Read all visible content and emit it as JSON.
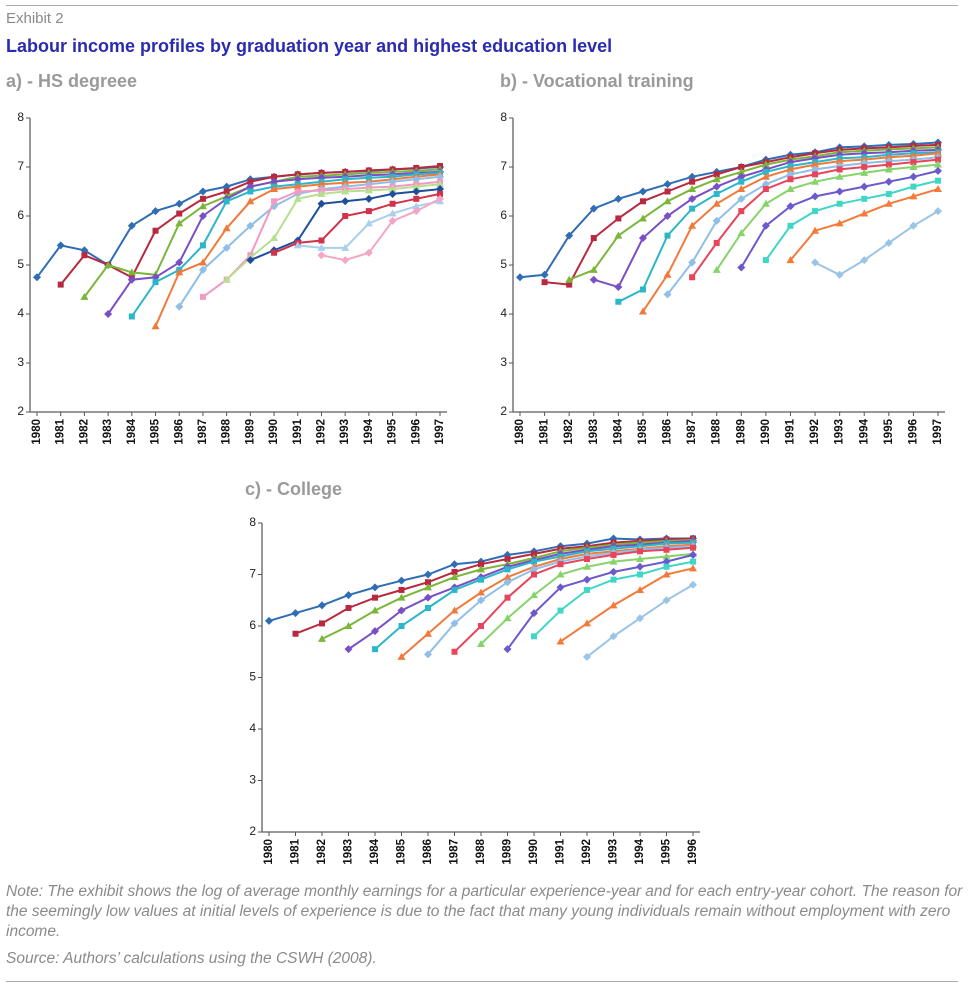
{
  "exhibit": "Exhibit 2",
  "title": "Labour income profiles by graduation year and highest education level",
  "note": "Note: The exhibit shows the log of average monthly earnings for a particular experience-year and for each entry-year cohort. The reason for the seemingly low values at initial levels of experience is due to the fact that many young individuals remain without employment with zero income.",
  "source": "Source: Authors’ calculations using the CSWH (2008).",
  "chart_data": [
    {
      "type": "line",
      "title": "a) - HS degreee",
      "categories": [
        "1980",
        "1981",
        "1982",
        "1983",
        "1984",
        "1985",
        "1986",
        "1987",
        "1988",
        "1989",
        "1990",
        "1991",
        "1992",
        "1993",
        "1994",
        "1995",
        "1996",
        "1997"
      ],
      "ylim": [
        2,
        8
      ],
      "yticks": [
        2,
        3,
        4,
        5,
        6,
        7,
        8
      ],
      "series": [
        {
          "color": "#2f6db5",
          "values": [
            4.75,
            5.4,
            5.3,
            5.0,
            5.8,
            6.1,
            6.25,
            6.5,
            6.6,
            6.75,
            6.8,
            6.85,
            6.88,
            6.9,
            6.92,
            6.95,
            6.97,
            7.0
          ]
        },
        {
          "color": "#b8283f",
          "values": [
            null,
            4.6,
            5.2,
            5.0,
            4.75,
            5.7,
            6.05,
            6.35,
            6.5,
            6.7,
            6.8,
            6.85,
            6.88,
            6.9,
            6.93,
            6.95,
            6.98,
            7.02
          ]
        },
        {
          "color": "#7bb63a",
          "values": [
            null,
            null,
            4.35,
            5.0,
            4.85,
            4.8,
            5.85,
            6.2,
            6.4,
            6.6,
            6.7,
            6.8,
            6.82,
            6.85,
            6.88,
            6.9,
            6.92,
            6.95
          ]
        },
        {
          "color": "#7a4fc4",
          "values": [
            null,
            null,
            null,
            4.0,
            4.7,
            4.75,
            5.05,
            6.0,
            6.35,
            6.6,
            6.7,
            6.75,
            6.78,
            6.8,
            6.83,
            6.85,
            6.88,
            6.9
          ]
        },
        {
          "color": "#2bb6c9",
          "values": [
            null,
            null,
            null,
            null,
            3.95,
            4.65,
            4.9,
            5.4,
            6.3,
            6.5,
            6.6,
            6.65,
            6.7,
            6.75,
            6.78,
            6.8,
            6.85,
            6.88
          ]
        },
        {
          "color": "#f07a3c",
          "values": [
            null,
            null,
            null,
            null,
            null,
            3.75,
            4.85,
            5.05,
            5.75,
            6.3,
            6.55,
            6.6,
            6.65,
            6.68,
            6.7,
            6.75,
            6.8,
            6.85
          ]
        },
        {
          "color": "#8fbfe8",
          "values": [
            null,
            null,
            null,
            null,
            null,
            null,
            4.15,
            4.9,
            5.35,
            5.8,
            6.2,
            6.45,
            6.55,
            6.6,
            6.65,
            6.7,
            6.75,
            6.8
          ]
        },
        {
          "color": "#f29ac0",
          "values": [
            null,
            null,
            null,
            null,
            null,
            null,
            null,
            4.35,
            4.7,
            5.2,
            6.3,
            6.5,
            6.52,
            6.55,
            6.58,
            6.6,
            6.65,
            6.7
          ]
        },
        {
          "color": "#b6e08f",
          "values": [
            null,
            null,
            null,
            null,
            null,
            null,
            null,
            null,
            4.7,
            5.15,
            5.55,
            6.35,
            6.45,
            6.5,
            6.52,
            6.55,
            6.6,
            6.65
          ]
        },
        {
          "color": "#1f4f9a",
          "values": [
            null,
            null,
            null,
            null,
            null,
            null,
            null,
            null,
            null,
            5.1,
            5.3,
            5.5,
            6.25,
            6.3,
            6.35,
            6.45,
            6.5,
            6.55
          ]
        },
        {
          "color": "#d1334a",
          "values": [
            null,
            null,
            null,
            null,
            null,
            null,
            null,
            null,
            null,
            null,
            5.25,
            5.45,
            5.5,
            6.0,
            6.1,
            6.25,
            6.35,
            6.45
          ]
        },
        {
          "color": "#a8d0ee",
          "values": [
            null,
            null,
            null,
            null,
            null,
            null,
            null,
            null,
            null,
            null,
            null,
            5.4,
            5.35,
            5.35,
            5.85,
            6.05,
            6.2,
            6.3
          ]
        },
        {
          "color": "#f4a6c4",
          "values": [
            null,
            null,
            null,
            null,
            null,
            null,
            null,
            null,
            null,
            null,
            null,
            null,
            5.2,
            5.1,
            5.25,
            5.9,
            6.1,
            6.35
          ]
        }
      ]
    },
    {
      "type": "line",
      "title": "b) - Vocational training",
      "categories": [
        "1980",
        "1981",
        "1982",
        "1983",
        "1984",
        "1985",
        "1986",
        "1987",
        "1988",
        "1989",
        "1990",
        "1991",
        "1992",
        "1993",
        "1994",
        "1995",
        "1996",
        "1997"
      ],
      "ylim": [
        2,
        8
      ],
      "yticks": [
        2,
        3,
        4,
        5,
        6,
        7,
        8
      ],
      "series": [
        {
          "color": "#2f6db5",
          "values": [
            4.75,
            4.8,
            5.6,
            6.15,
            6.35,
            6.5,
            6.65,
            6.8,
            6.9,
            7.0,
            7.15,
            7.25,
            7.3,
            7.4,
            7.42,
            7.45,
            7.47,
            7.5
          ]
        },
        {
          "color": "#b8283f",
          "values": [
            null,
            4.65,
            4.6,
            5.55,
            5.95,
            6.3,
            6.5,
            6.7,
            6.85,
            7.0,
            7.1,
            7.2,
            7.28,
            7.35,
            7.38,
            7.4,
            7.43,
            7.45
          ]
        },
        {
          "color": "#7bb63a",
          "values": [
            null,
            null,
            4.7,
            4.9,
            5.6,
            5.95,
            6.3,
            6.55,
            6.75,
            6.9,
            7.05,
            7.15,
            7.22,
            7.3,
            7.33,
            7.36,
            7.38,
            7.4
          ]
        },
        {
          "color": "#7a4fc4",
          "values": [
            null,
            null,
            null,
            4.7,
            4.55,
            5.55,
            6.0,
            6.35,
            6.6,
            6.8,
            6.95,
            7.1,
            7.18,
            7.25,
            7.28,
            7.3,
            7.33,
            7.35
          ]
        },
        {
          "color": "#2bb6c9",
          "values": [
            null,
            null,
            null,
            null,
            4.25,
            4.5,
            5.6,
            6.15,
            6.45,
            6.7,
            6.9,
            7.02,
            7.1,
            7.18,
            7.2,
            7.25,
            7.28,
            7.3
          ]
        },
        {
          "color": "#f07a3c",
          "values": [
            null,
            null,
            null,
            null,
            null,
            4.05,
            4.8,
            5.8,
            6.25,
            6.55,
            6.8,
            6.95,
            7.05,
            7.12,
            7.15,
            7.2,
            7.23,
            7.28
          ]
        },
        {
          "color": "#8fbfe8",
          "values": [
            null,
            null,
            null,
            null,
            null,
            null,
            4.4,
            5.05,
            5.9,
            6.35,
            6.65,
            6.85,
            6.95,
            7.02,
            7.08,
            7.12,
            7.15,
            7.2
          ]
        },
        {
          "color": "#e8445a",
          "values": [
            null,
            null,
            null,
            null,
            null,
            null,
            null,
            4.75,
            5.45,
            6.1,
            6.55,
            6.75,
            6.85,
            6.95,
            7.0,
            7.05,
            7.1,
            7.15
          ]
        },
        {
          "color": "#86d36a",
          "values": [
            null,
            null,
            null,
            null,
            null,
            null,
            null,
            null,
            4.9,
            5.65,
            6.25,
            6.55,
            6.7,
            6.8,
            6.88,
            6.95,
            7.0,
            7.05
          ]
        },
        {
          "color": "#6a5acd",
          "values": [
            null,
            null,
            null,
            null,
            null,
            null,
            null,
            null,
            null,
            4.95,
            5.8,
            6.2,
            6.4,
            6.5,
            6.6,
            6.7,
            6.8,
            6.92
          ]
        },
        {
          "color": "#3fd6c6",
          "values": [
            null,
            null,
            null,
            null,
            null,
            null,
            null,
            null,
            null,
            null,
            5.1,
            5.8,
            6.1,
            6.25,
            6.35,
            6.45,
            6.6,
            6.72
          ]
        },
        {
          "color": "#f57a3a",
          "values": [
            null,
            null,
            null,
            null,
            null,
            null,
            null,
            null,
            null,
            null,
            null,
            5.1,
            5.7,
            5.85,
            6.05,
            6.25,
            6.4,
            6.55
          ]
        },
        {
          "color": "#9cc4e4",
          "values": [
            null,
            null,
            null,
            null,
            null,
            null,
            null,
            null,
            null,
            null,
            null,
            null,
            5.05,
            4.8,
            5.1,
            5.45,
            5.8,
            6.1
          ]
        }
      ]
    },
    {
      "type": "line",
      "title": "c) - College",
      "categories": [
        "1980",
        "1981",
        "1982",
        "1983",
        "1984",
        "1985",
        "1986",
        "1987",
        "1988",
        "1989",
        "1990",
        "1991",
        "1992",
        "1993",
        "1994",
        "1995",
        "1996"
      ],
      "ylim": [
        2,
        8
      ],
      "yticks": [
        2,
        3,
        4,
        5,
        6,
        7,
        8
      ],
      "series": [
        {
          "color": "#2f6db5",
          "values": [
            6.1,
            6.25,
            6.4,
            6.6,
            6.75,
            6.88,
            7.0,
            7.2,
            7.25,
            7.38,
            7.45,
            7.55,
            7.6,
            7.7,
            7.68,
            7.7,
            7.7
          ]
        },
        {
          "color": "#b8283f",
          "values": [
            null,
            5.85,
            6.05,
            6.35,
            6.55,
            6.7,
            6.85,
            7.05,
            7.2,
            7.3,
            7.4,
            7.5,
            7.55,
            7.62,
            7.65,
            7.68,
            7.7
          ]
        },
        {
          "color": "#7bb63a",
          "values": [
            null,
            null,
            5.75,
            6.0,
            6.3,
            6.55,
            6.75,
            6.95,
            7.1,
            7.2,
            7.32,
            7.45,
            7.52,
            7.58,
            7.62,
            7.65,
            7.67
          ]
        },
        {
          "color": "#7a4fc4",
          "values": [
            null,
            null,
            null,
            5.55,
            5.9,
            6.3,
            6.55,
            6.75,
            6.95,
            7.15,
            7.28,
            7.4,
            7.48,
            7.55,
            7.58,
            7.62,
            7.65
          ]
        },
        {
          "color": "#2bb6c9",
          "values": [
            null,
            null,
            null,
            null,
            5.55,
            6.0,
            6.35,
            6.7,
            6.9,
            7.1,
            7.25,
            7.35,
            7.45,
            7.5,
            7.55,
            7.6,
            7.62
          ]
        },
        {
          "color": "#f07a3c",
          "values": [
            null,
            null,
            null,
            null,
            null,
            5.4,
            5.85,
            6.3,
            6.65,
            6.95,
            7.15,
            7.3,
            7.4,
            7.45,
            7.5,
            7.55,
            7.58
          ]
        },
        {
          "color": "#8fbfe8",
          "values": [
            null,
            null,
            null,
            null,
            null,
            null,
            5.45,
            6.05,
            6.5,
            6.85,
            7.1,
            7.25,
            7.35,
            7.42,
            7.48,
            7.52,
            7.55
          ]
        },
        {
          "color": "#e8445a",
          "values": [
            null,
            null,
            null,
            null,
            null,
            null,
            null,
            5.5,
            6.0,
            6.55,
            7.0,
            7.2,
            7.3,
            7.38,
            7.45,
            7.48,
            7.52
          ]
        },
        {
          "color": "#86d36a",
          "values": [
            null,
            null,
            null,
            null,
            null,
            null,
            null,
            null,
            5.65,
            6.15,
            6.6,
            7.0,
            7.15,
            7.25,
            7.3,
            7.35,
            7.4
          ]
        },
        {
          "color": "#6a5acd",
          "values": [
            null,
            null,
            null,
            null,
            null,
            null,
            null,
            null,
            null,
            5.55,
            6.25,
            6.75,
            6.9,
            7.05,
            7.15,
            7.25,
            7.38
          ]
        },
        {
          "color": "#3fd6c6",
          "values": [
            null,
            null,
            null,
            null,
            null,
            null,
            null,
            null,
            null,
            null,
            5.8,
            6.3,
            6.7,
            6.9,
            7.0,
            7.15,
            7.25
          ]
        },
        {
          "color": "#f57a3a",
          "values": [
            null,
            null,
            null,
            null,
            null,
            null,
            null,
            null,
            null,
            null,
            null,
            5.7,
            6.05,
            6.4,
            6.7,
            7.0,
            7.12
          ]
        },
        {
          "color": "#9cc4e4",
          "values": [
            null,
            null,
            null,
            null,
            null,
            null,
            null,
            null,
            null,
            null,
            null,
            null,
            5.4,
            5.8,
            6.15,
            6.5,
            6.8
          ]
        }
      ]
    }
  ]
}
